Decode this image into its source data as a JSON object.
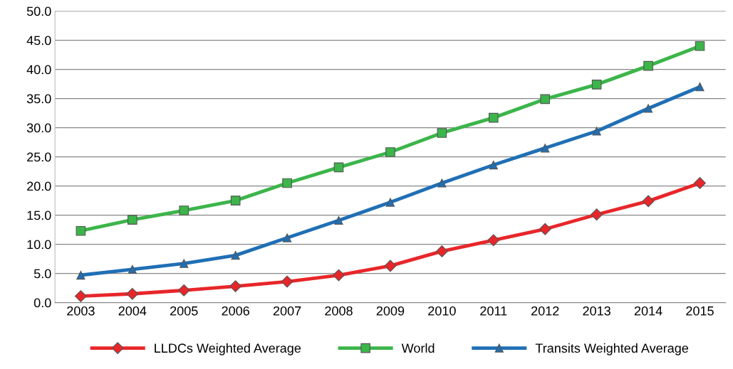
{
  "chart_data": {
    "type": "line",
    "categories": [
      "2003",
      "2004",
      "2005",
      "2006",
      "2007",
      "2008",
      "2009",
      "2010",
      "2011",
      "2012",
      "2013",
      "2014",
      "2015"
    ],
    "series": [
      {
        "name": "LLDCs Weighted Average",
        "color": "#e8262a",
        "marker": "diamond",
        "values": [
          1.1,
          1.5,
          2.1,
          2.8,
          3.6,
          4.7,
          6.3,
          8.8,
          10.7,
          12.6,
          15.1,
          17.4,
          20.5
        ]
      },
      {
        "name": "World",
        "color": "#3cb54a",
        "marker": "square",
        "values": [
          12.3,
          14.2,
          15.8,
          17.5,
          20.5,
          23.2,
          25.8,
          29.1,
          31.7,
          34.9,
          37.4,
          40.6,
          44.0
        ]
      },
      {
        "name": "Transits Weighted Average",
        "color": "#1f6fb5",
        "marker": "triangle",
        "values": [
          4.7,
          5.7,
          6.7,
          8.1,
          11.1,
          14.1,
          17.2,
          20.5,
          23.6,
          26.5,
          29.4,
          33.3,
          37.0
        ]
      }
    ],
    "ylim": [
      0,
      50
    ],
    "yticks": [
      {
        "value": 0,
        "label": "0.0"
      },
      {
        "value": 5,
        "label": "5.0"
      },
      {
        "value": 10,
        "label": "10.0"
      },
      {
        "value": 15,
        "label": "15.0"
      },
      {
        "value": 20,
        "label": "20.0"
      },
      {
        "value": 25,
        "label": "25.0"
      },
      {
        "value": 30,
        "label": "30.0"
      },
      {
        "value": 35,
        "label": "35.0"
      },
      {
        "value": 40,
        "label": "40.0"
      },
      {
        "value": 45,
        "label": "45.0"
      },
      {
        "value": 50,
        "label": "50.0"
      }
    ],
    "grid": "y",
    "legend": "bottom",
    "line_style": "solid"
  }
}
